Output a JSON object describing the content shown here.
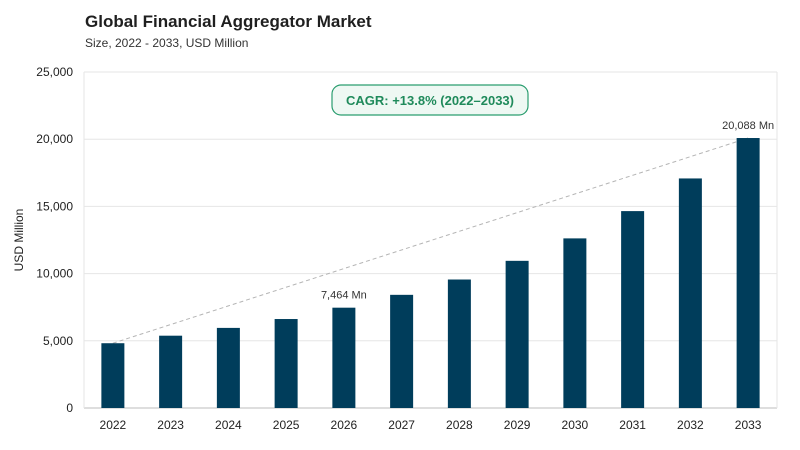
{
  "header": {
    "title": "Global Financial Aggregator Market",
    "subtitle": "Size, 2022 - 2033, USD Million"
  },
  "colors": {
    "bar": "#003d5b",
    "grid": "#e6e6e6",
    "trend": "#b5b5b5",
    "cagr_border": "#2a9d6f",
    "cagr_fill": "#eef8f3",
    "cagr_text": "#1f8a5b"
  },
  "chart_data": {
    "type": "bar",
    "title": "Global Financial Aggregator Market",
    "subtitle": "Size, 2022 - 2033, USD Million",
    "xlabel": "",
    "ylabel": "USD Million",
    "ylim": [
      0,
      25000
    ],
    "yticks": [
      0,
      5000,
      10000,
      15000,
      20000,
      25000
    ],
    "ytick_labels": [
      "0",
      "5,000",
      "10,000",
      "15,000",
      "20,000",
      "25,000"
    ],
    "categories": [
      "2022",
      "2023",
      "2024",
      "2025",
      "2026",
      "2027",
      "2028",
      "2029",
      "2030",
      "2031",
      "2032",
      "2033"
    ],
    "values": [
      4820,
      5380,
      5960,
      6620,
      7464,
      8420,
      9560,
      10950,
      12620,
      14650,
      17080,
      20088
    ],
    "data_labels": [
      {
        "category": "2026",
        "text": "7,464 Mn"
      },
      {
        "category": "2033",
        "text": "20,088 Mn"
      }
    ],
    "trend_line": {
      "from": "2022",
      "to": "2033"
    },
    "annotation": "CAGR: +13.8% (2022–2033)",
    "grid": true,
    "legend": "none"
  }
}
